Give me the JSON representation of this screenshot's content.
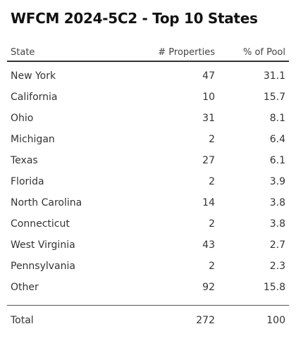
{
  "title": "WFCM 2024-5C2 - Top 10 States",
  "table": {
    "headers": {
      "state": "State",
      "properties": "# Properties",
      "pct": "% of Pool"
    },
    "rows": [
      {
        "state": "New York",
        "properties": "47",
        "pct": "31.1"
      },
      {
        "state": "California",
        "properties": "10",
        "pct": "15.7"
      },
      {
        "state": "Ohio",
        "properties": "31",
        "pct": "8.1"
      },
      {
        "state": "Michigan",
        "properties": "2",
        "pct": "6.4"
      },
      {
        "state": "Texas",
        "properties": "27",
        "pct": "6.1"
      },
      {
        "state": "Florida",
        "properties": "2",
        "pct": "3.9"
      },
      {
        "state": "North Carolina",
        "properties": "14",
        "pct": "3.8"
      },
      {
        "state": "Connecticut",
        "properties": "2",
        "pct": "3.8"
      },
      {
        "state": "West Virginia",
        "properties": "43",
        "pct": "2.7"
      },
      {
        "state": "Pennsylvania",
        "properties": "2",
        "pct": "2.3"
      },
      {
        "state": "Other",
        "properties": "92",
        "pct": "15.8"
      }
    ],
    "total": {
      "state": "Total",
      "properties": "272",
      "pct": "100"
    }
  }
}
